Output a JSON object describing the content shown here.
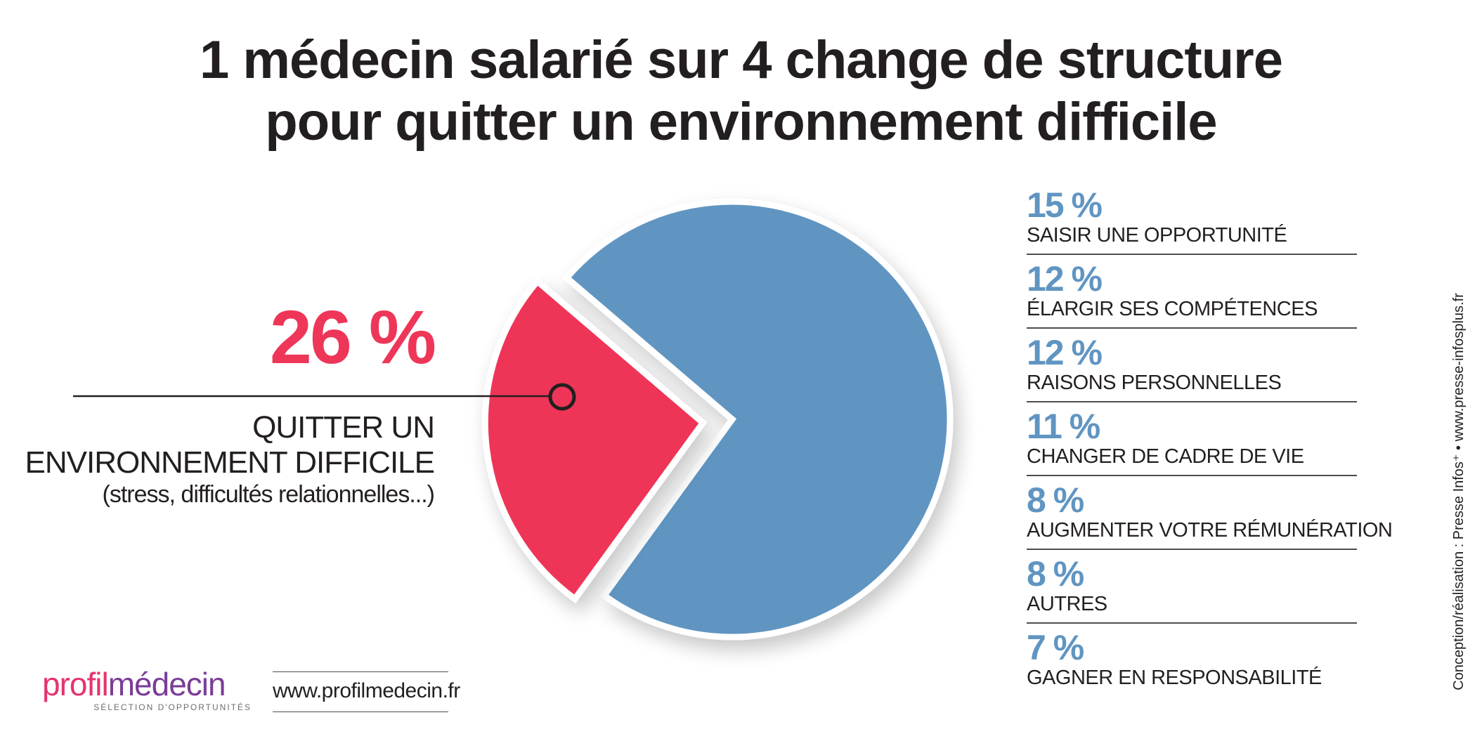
{
  "title_lines": [
    "1 médecin salarié sur 4 change de structure",
    "pour quitter un environnement difficile"
  ],
  "highlight": {
    "percent": "26 %",
    "label_lines": [
      "QUITTER UN",
      "ENVIRONNEMENT DIFFICILE"
    ],
    "note": "(stress, difficultés relationnelles...)"
  },
  "legend": [
    {
      "percent": "15 %",
      "label": "SAISIR UNE OPPORTUNITÉ"
    },
    {
      "percent": "12 %",
      "label": "ÉLARGIR SES COMPÉTENCES"
    },
    {
      "percent": "12 %",
      "label": "RAISONS PERSONNELLES"
    },
    {
      "percent": "11 %",
      "label": "CHANGER DE CADRE DE VIE"
    },
    {
      "percent": "8 %",
      "label": "AUGMENTER VOTRE RÉMUNÉRATION"
    },
    {
      "percent": "8 %",
      "label": "AUTRES"
    },
    {
      "percent": "7 %",
      "label": "GAGNER EN RESPONSABILITÉ"
    }
  ],
  "credit": "Conception/réalisation : Presse Infos⁺ • www.presse-infosplus.fr",
  "logo": {
    "part1": "profil",
    "part2": "médecin",
    "tagline": "SÉLECTION D'OPPORTUNITÉS"
  },
  "website": "www.profilmedecin.fr",
  "colors": {
    "highlight": "#ee3659",
    "rest": "#6095c2",
    "text": "#231f20",
    "logo_pink": "#e5336e",
    "logo_purple": "#7b3d97"
  },
  "chart_data": {
    "type": "pie",
    "title": "1 médecin salarié sur 4 change de structure pour quitter un environnement difficile",
    "slices": [
      {
        "label": "QUITTER UN ENVIRONNEMENT DIFFICILE",
        "value": 26,
        "exploded": true
      },
      {
        "label": "SAISIR UNE OPPORTUNITÉ",
        "value": 15
      },
      {
        "label": "ÉLARGIR SES COMPÉTENCES",
        "value": 12
      },
      {
        "label": "RAISONS PERSONNELLES",
        "value": 12
      },
      {
        "label": "CHANGER DE CADRE DE VIE",
        "value": 11
      },
      {
        "label": "AUGMENTER VOTRE RÉMUNÉRATION",
        "value": 8
      },
      {
        "label": "AUTRES",
        "value": 8
      },
      {
        "label": "GAGNER EN RESPONSABILITÉ",
        "value": 7
      }
    ],
    "unit": "%",
    "legend_position": "right"
  }
}
